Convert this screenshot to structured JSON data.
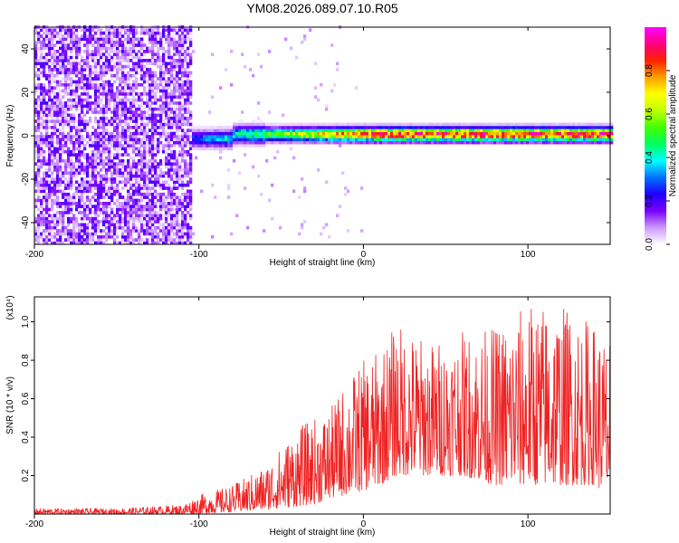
{
  "chart_data": [
    {
      "type": "heatmap",
      "title": "YM08.2026.089.07.10.R05",
      "xlabel": "Height of straight line (km)",
      "ylabel": "Frequency (Hz)",
      "xlim": [
        -200,
        150
      ],
      "ylim": [
        -50,
        50
      ],
      "xticks": [
        -200,
        -100,
        0,
        100
      ],
      "yticks": [
        -40,
        -20,
        0,
        20,
        40
      ],
      "colorbar": {
        "label": "Normalized spectral amplitude",
        "range": [
          0,
          1
        ],
        "ticks": [
          "0.0",
          "0.2",
          "0.4",
          "0.6",
          "0.8"
        ],
        "colors": [
          "#ffffff",
          "#cc99ff",
          "#7a00ff",
          "#1f00ff",
          "#0070ff",
          "#00ffff",
          "#00ff60",
          "#40ff00",
          "#c0ff00",
          "#ffff00",
          "#ffa000",
          "#ff2000",
          "#ff0080",
          "#ff00ff"
        ]
      },
      "description_values": {
        "noise_region_x": [
          -200,
          -105
        ],
        "signal_band_center_hz": 0,
        "signal_band_halfwidth_hz": 5,
        "peak_amplitude": 0.95
      }
    },
    {
      "type": "line",
      "xlabel": "Height of straight line (km)",
      "ylabel": "SNR (10 * v/v)",
      "yscale_label": "(x10⁴)",
      "xlim": [
        -200,
        150
      ],
      "ylim": [
        0,
        1.13
      ],
      "xticks": [
        -200,
        -100,
        0,
        100
      ],
      "yticks": [
        0.2,
        0.4,
        0.6,
        0.8,
        1.0
      ],
      "series_color": "#ee2222",
      "envelope": {
        "x": [
          -200,
          -150,
          -110,
          -100,
          -80,
          -60,
          -50,
          -40,
          -30,
          -20,
          -10,
          0,
          10,
          20,
          40,
          60,
          80,
          100,
          120,
          140,
          150
        ],
        "min": [
          0.0,
          0.0,
          0.0,
          0.0,
          0.01,
          0.02,
          0.03,
          0.04,
          0.05,
          0.08,
          0.1,
          0.12,
          0.15,
          0.2,
          0.2,
          0.2,
          0.15,
          0.15,
          0.15,
          0.15,
          0.1
        ],
        "max": [
          0.03,
          0.03,
          0.05,
          0.1,
          0.15,
          0.25,
          0.35,
          0.45,
          0.5,
          0.55,
          0.7,
          0.8,
          0.85,
          1.0,
          0.9,
          0.95,
          0.98,
          1.1,
          1.1,
          1.0,
          0.9
        ]
      }
    }
  ]
}
